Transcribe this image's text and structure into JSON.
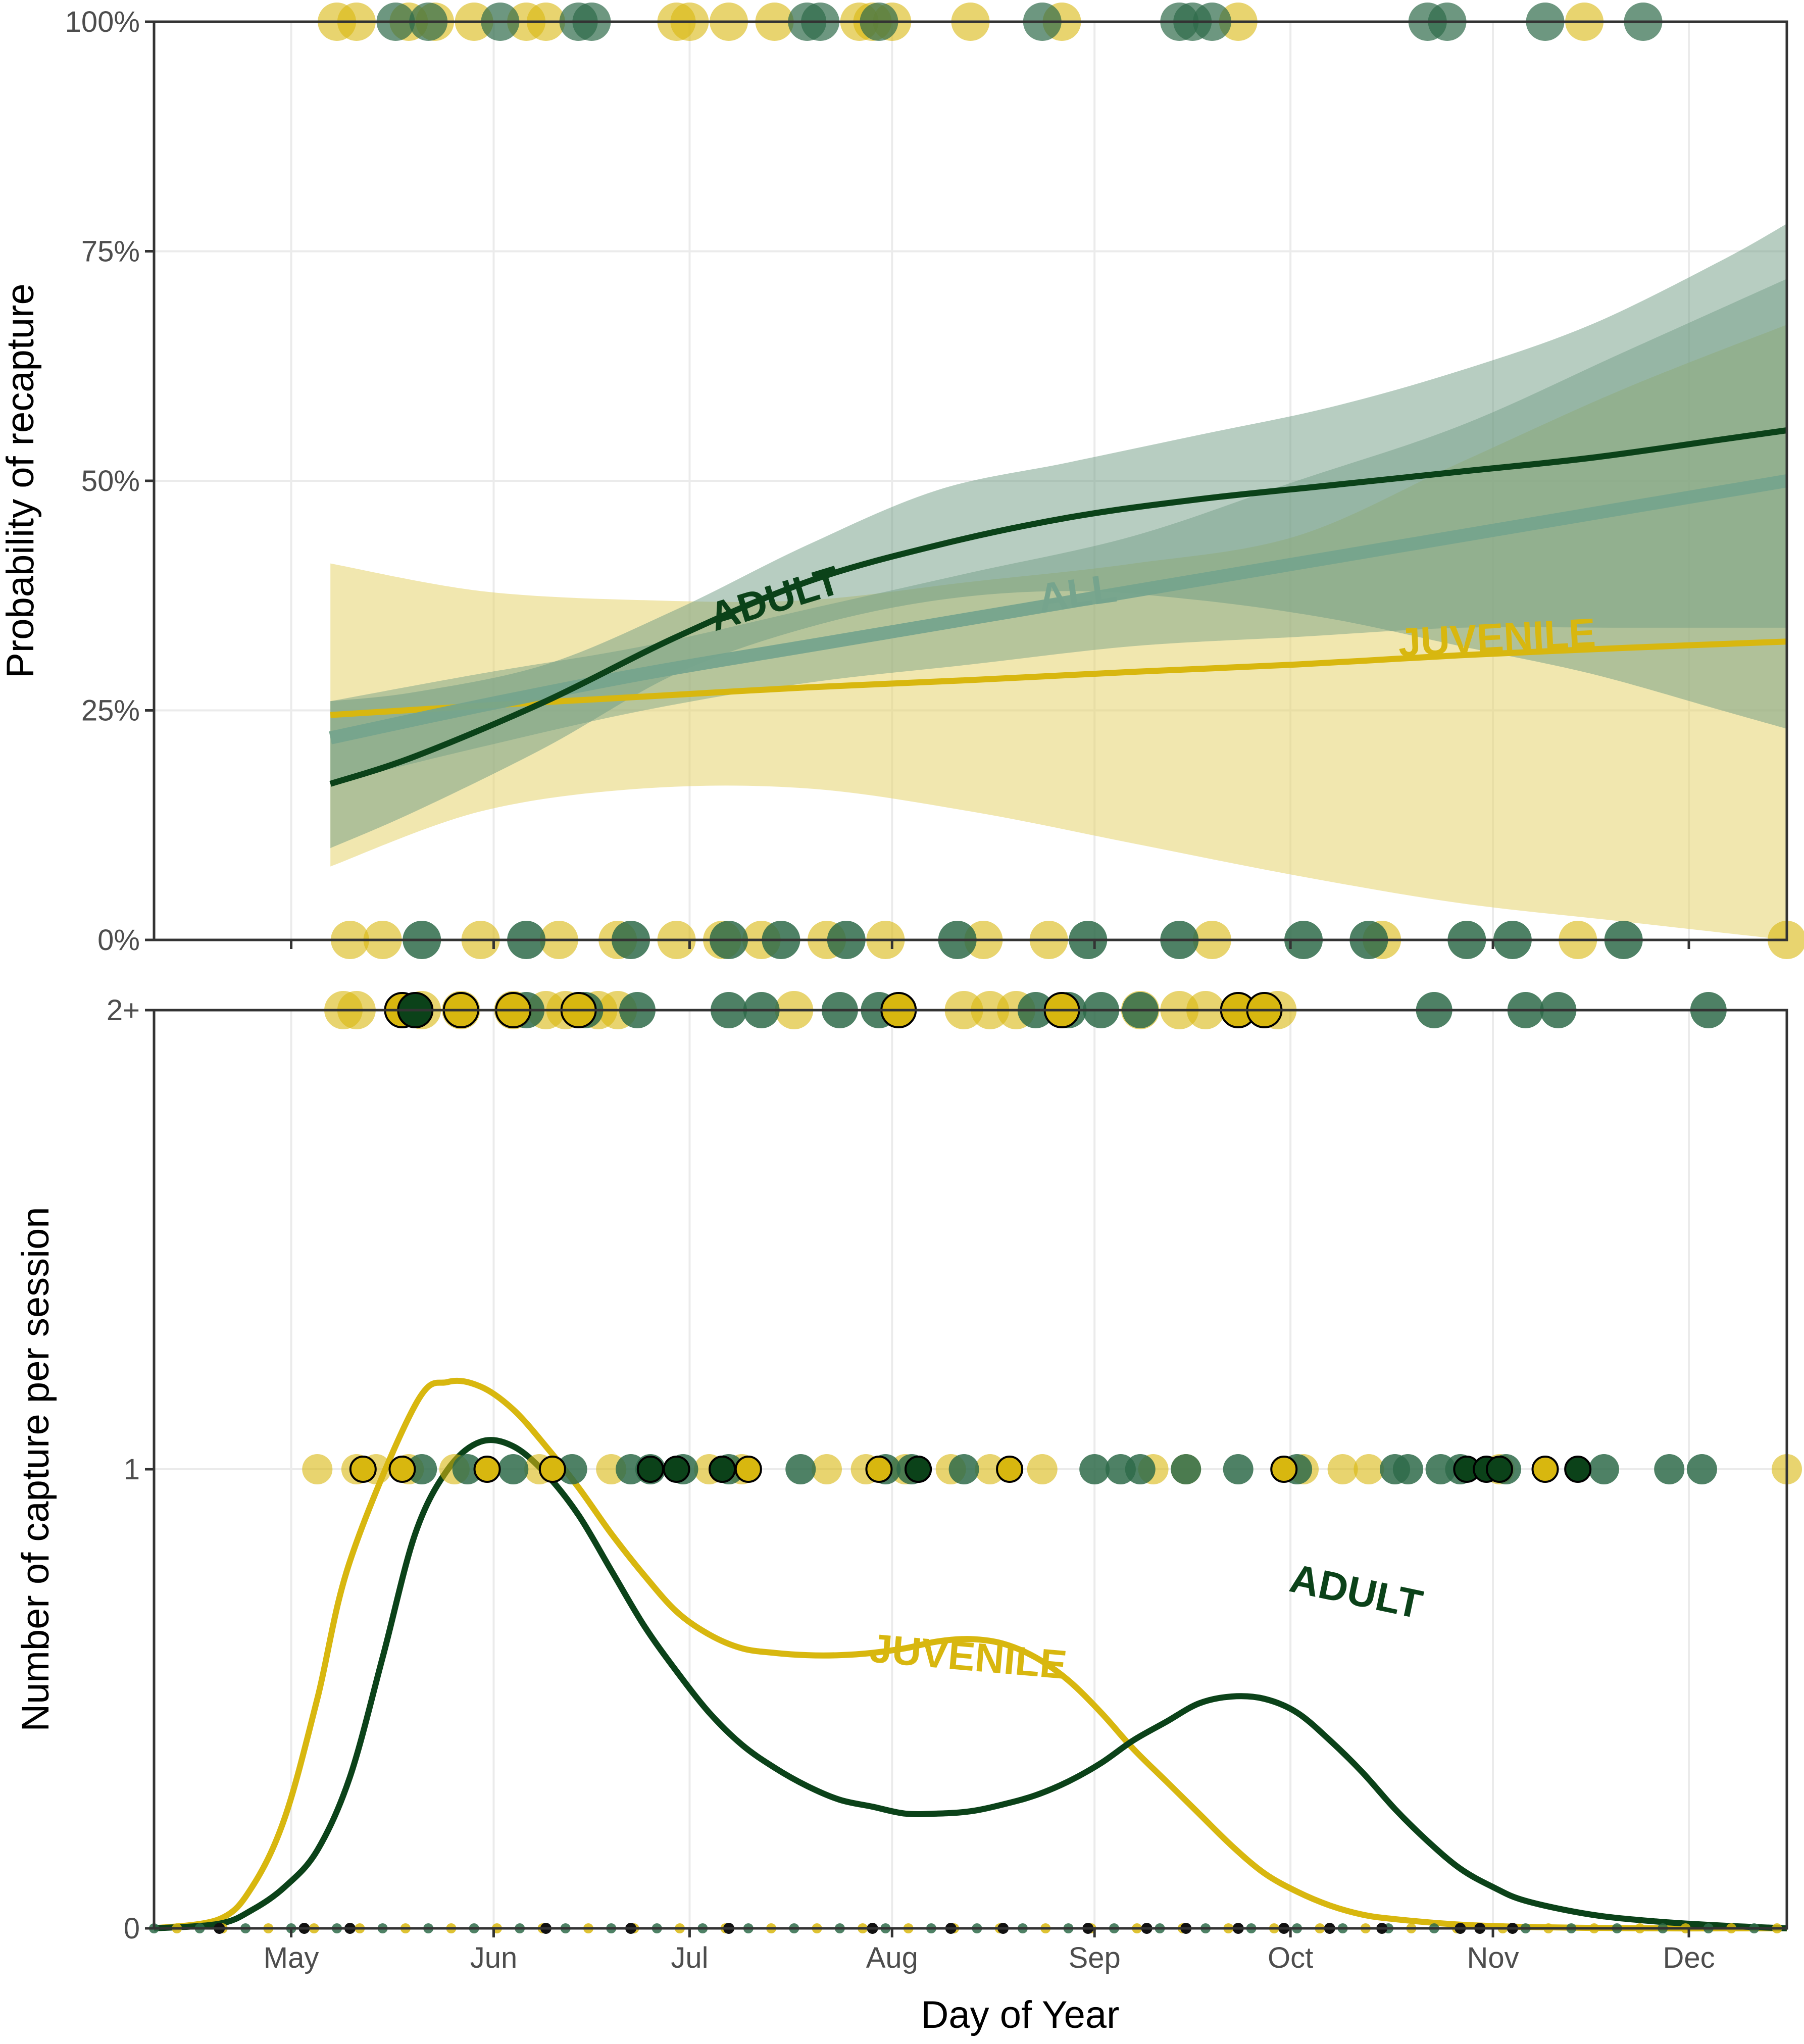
{
  "colors": {
    "adult": "#0b4219",
    "juvenile": "#d8b70f",
    "all": "#76a48d",
    "adult_points": "#2f6b4a",
    "adult_band": "#6f9c83",
    "juvenile_band": "#e6d46e",
    "grid": "#ebebeb",
    "axis": "#333333"
  },
  "chart_data": [
    {
      "type": "line",
      "panel": "top",
      "ylabel": "Probability of recapture",
      "xlim": [
        100,
        350
      ],
      "ylim": [
        0,
        1
      ],
      "y_ticks": [
        0,
        0.25,
        0.5,
        0.75,
        1
      ],
      "y_tick_labels": [
        "0%",
        "25%",
        "50%",
        "75%",
        "100%"
      ],
      "x_ticks": [
        121,
        152,
        182,
        213,
        244,
        274,
        305,
        335
      ],
      "series": [
        {
          "name": "ADULT",
          "x": [
            127,
            140,
            160,
            180,
            200,
            220,
            240,
            260,
            280,
            300,
            320,
            340,
            350
          ],
          "y": [
            0.17,
            0.2,
            0.26,
            0.33,
            0.39,
            0.43,
            0.46,
            0.48,
            0.495,
            0.51,
            0.525,
            0.545,
            0.555
          ],
          "lower": [
            0.1,
            0.14,
            0.21,
            0.29,
            0.34,
            0.37,
            0.38,
            0.37,
            0.35,
            0.32,
            0.29,
            0.25,
            0.23
          ],
          "upper": [
            0.26,
            0.27,
            0.3,
            0.36,
            0.43,
            0.49,
            0.52,
            0.55,
            0.58,
            0.62,
            0.67,
            0.74,
            0.78
          ]
        },
        {
          "name": "ALL",
          "x": [
            127,
            150,
            175,
            200,
            225,
            250,
            275,
            300,
            325,
            350
          ],
          "y": [
            0.22,
            0.255,
            0.29,
            0.32,
            0.35,
            0.38,
            0.41,
            0.44,
            0.47,
            0.5
          ],
          "lower": [
            0.17,
            0.21,
            0.25,
            0.28,
            0.3,
            0.32,
            0.33,
            0.34,
            0.34,
            0.34
          ],
          "upper": [
            0.26,
            0.29,
            0.32,
            0.36,
            0.4,
            0.44,
            0.5,
            0.56,
            0.64,
            0.72
          ]
        },
        {
          "name": "JUVENILE",
          "x": [
            127,
            150,
            175,
            200,
            225,
            250,
            275,
            300,
            325,
            350
          ],
          "y": [
            0.245,
            0.255,
            0.265,
            0.275,
            0.283,
            0.292,
            0.3,
            0.31,
            0.318,
            0.325
          ],
          "lower": [
            0.08,
            0.14,
            0.165,
            0.165,
            0.14,
            0.105,
            0.07,
            0.04,
            0.02,
            0.0
          ],
          "upper": [
            0.41,
            0.38,
            0.37,
            0.37,
            0.39,
            0.41,
            0.44,
            0.52,
            0.6,
            0.67
          ]
        }
      ],
      "points": {
        "adult_at_1": [
          137,
          142,
          153,
          165,
          167,
          200,
          202,
          211,
          236,
          257,
          259,
          262,
          295,
          298,
          313,
          328
        ],
        "juvenile_at_1": [
          128,
          131,
          139,
          143,
          149,
          157,
          160,
          180,
          182,
          188,
          195,
          208,
          210,
          213,
          225,
          239,
          266,
          319
        ],
        "adult_at_0": [
          141,
          157,
          173,
          188,
          196,
          206,
          223,
          243,
          257,
          276,
          286,
          301,
          308,
          325
        ],
        "juvenile_at_0": [
          130,
          135,
          150,
          162,
          171,
          180,
          187,
          193,
          203,
          212,
          227,
          237,
          262,
          288,
          318,
          350
        ]
      }
    },
    {
      "type": "line",
      "panel": "bottom",
      "xlabel": "Day of Year",
      "ylabel": "Number of capture per session",
      "xlim": [
        100,
        350
      ],
      "ylim": [
        0,
        2
      ],
      "y_ticks": [
        0,
        1,
        2
      ],
      "y_tick_labels": [
        "0",
        "1",
        "2+"
      ],
      "x_ticks": [
        121,
        152,
        182,
        213,
        244,
        274,
        305,
        335
      ],
      "x_tick_labels": [
        "May",
        "Jun",
        "Jul",
        "Aug",
        "Sep",
        "Oct",
        "Nov",
        "Dec"
      ],
      "series": [
        {
          "name": "JUVENILE",
          "x": [
            100,
            110,
            115,
            120,
            125,
            130,
            140,
            145,
            150,
            155,
            160,
            165,
            170,
            175,
            180,
            185,
            190,
            195,
            200,
            205,
            210,
            215,
            220,
            225,
            230,
            235,
            240,
            245,
            250,
            255,
            260,
            265,
            270,
            275,
            280,
            285,
            290,
            300,
            310,
            320,
            330,
            340,
            350
          ],
          "y": [
            0.0,
            0.02,
            0.09,
            0.24,
            0.5,
            0.8,
            1.14,
            1.19,
            1.18,
            1.13,
            1.05,
            0.96,
            0.86,
            0.77,
            0.69,
            0.64,
            0.61,
            0.6,
            0.595,
            0.595,
            0.6,
            0.61,
            0.625,
            0.63,
            0.62,
            0.59,
            0.54,
            0.47,
            0.39,
            0.32,
            0.25,
            0.18,
            0.12,
            0.08,
            0.05,
            0.03,
            0.02,
            0.008,
            0.003,
            0.001,
            0.0,
            0.0,
            0.0
          ]
        },
        {
          "name": "ADULT",
          "x": [
            100,
            110,
            115,
            120,
            125,
            130,
            135,
            140,
            145,
            150,
            155,
            160,
            165,
            170,
            175,
            180,
            185,
            190,
            195,
            200,
            205,
            210,
            215,
            220,
            225,
            230,
            235,
            240,
            245,
            250,
            255,
            260,
            265,
            270,
            275,
            280,
            285,
            290,
            295,
            300,
            305,
            310,
            320,
            330,
            340,
            350
          ],
          "y": [
            0.0,
            0.01,
            0.04,
            0.09,
            0.17,
            0.33,
            0.59,
            0.86,
            1.0,
            1.06,
            1.05,
            0.99,
            0.9,
            0.78,
            0.66,
            0.56,
            0.47,
            0.4,
            0.35,
            0.31,
            0.28,
            0.265,
            0.25,
            0.25,
            0.255,
            0.27,
            0.29,
            0.32,
            0.36,
            0.41,
            0.45,
            0.49,
            0.505,
            0.5,
            0.47,
            0.41,
            0.34,
            0.26,
            0.19,
            0.13,
            0.09,
            0.06,
            0.03,
            0.015,
            0.006,
            0.0
          ]
        }
      ],
      "points": {
        "adult_at_2": [
          157,
          166,
          174,
          188,
          193,
          205,
          211,
          235,
          240,
          245,
          251,
          296,
          310,
          315,
          338
        ],
        "juvenile_at_2": [
          129,
          131,
          141,
          147,
          155,
          160,
          163,
          168,
          171,
          198,
          224,
          228,
          232,
          251,
          257,
          261,
          272
        ],
        "adult_at_1": [
          141,
          148,
          155,
          164,
          173,
          176,
          181,
          188,
          199,
          212,
          216,
          224,
          244,
          248,
          251,
          258,
          266,
          275,
          290,
          292,
          297,
          300,
          307,
          322,
          332,
          337
        ],
        "juvenile_at_1": [
          125,
          131,
          134,
          139,
          146,
          159,
          170,
          185,
          190,
          203,
          209,
          215,
          222,
          228,
          236,
          253,
          258,
          276,
          282,
          286,
          306,
          350
        ],
        "outlined_adult_1": [
          176,
          180,
          187,
          217,
          301,
          304,
          306,
          318
        ],
        "outlined_juvenile_1": [
          132,
          138,
          151,
          161,
          187,
          191,
          211,
          217,
          231,
          273,
          313
        ],
        "outlined_adult_2": [
          140
        ],
        "outlined_juvenile_2": [
          138,
          147,
          155,
          165,
          214,
          239,
          266,
          270
        ]
      }
    }
  ]
}
